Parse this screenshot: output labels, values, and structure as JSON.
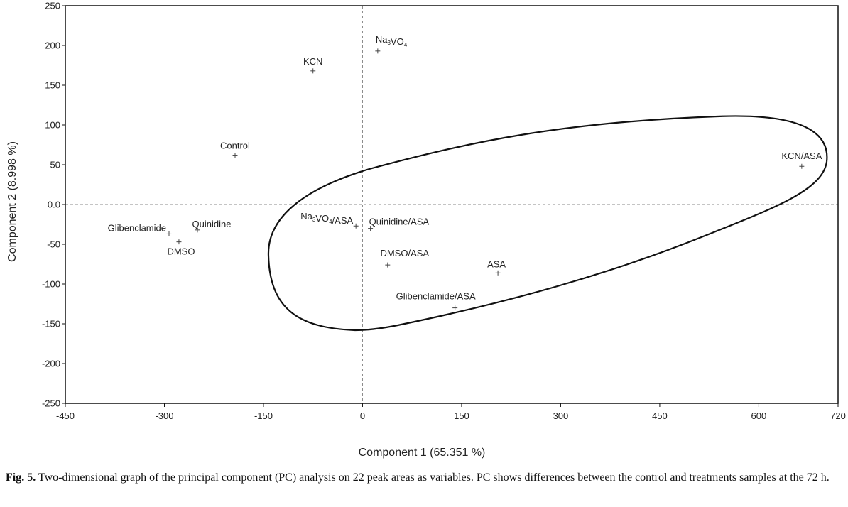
{
  "chart_data": {
    "type": "scatter",
    "xlabel": "Component 1 (65.351 %)",
    "ylabel": "Component 2 (8.998 %)",
    "xlim": [
      -450,
      720
    ],
    "ylim": [
      -250,
      250
    ],
    "xticks": [
      "-450",
      "-300",
      "-150",
      "0",
      "150",
      "300",
      "450",
      "600",
      "720"
    ],
    "yticks": [
      "250",
      "200",
      "150",
      "100",
      "50",
      "0.0",
      "-50",
      "-100",
      "-150",
      "-200",
      "-250"
    ],
    "reference_lines": "dashed at x = 0 and y = 0",
    "points": [
      {
        "label": "Na3VO4",
        "x": 23,
        "y": 193
      },
      {
        "label": "KCN",
        "x": -75,
        "y": 168
      },
      {
        "label": "Control",
        "x": -193,
        "y": 62
      },
      {
        "label": "KCN/ASA",
        "x": 665,
        "y": 48
      },
      {
        "label": "Glibenclamide",
        "x": -293,
        "y": -37
      },
      {
        "label": "Quinidine",
        "x": -250,
        "y": -32
      },
      {
        "label": "DMSO",
        "x": -278,
        "y": -47
      },
      {
        "label": "Na3VO4/ASA",
        "x": -10,
        "y": -27
      },
      {
        "label": "Quinidine/ASA",
        "x": 12,
        "y": -30
      },
      {
        "label": "DMSO/ASA",
        "x": 38,
        "y": -76
      },
      {
        "label": "ASA",
        "x": 205,
        "y": -86
      },
      {
        "label": "Glibenclamide/ASA",
        "x": 140,
        "y": -130
      }
    ],
    "ellipse_group": [
      "Na3VO4/ASA",
      "Quinidine/ASA",
      "DMSO/ASA",
      "ASA",
      "Glibenclamide/ASA",
      "KCN/ASA"
    ]
  },
  "caption": {
    "label": "Fig. 5.",
    "text": " Two-dimensional graph of the principal component (PC) analysis on 22 peak areas as variables. PC shows differences between the control and treatments samples at the 72 h."
  }
}
